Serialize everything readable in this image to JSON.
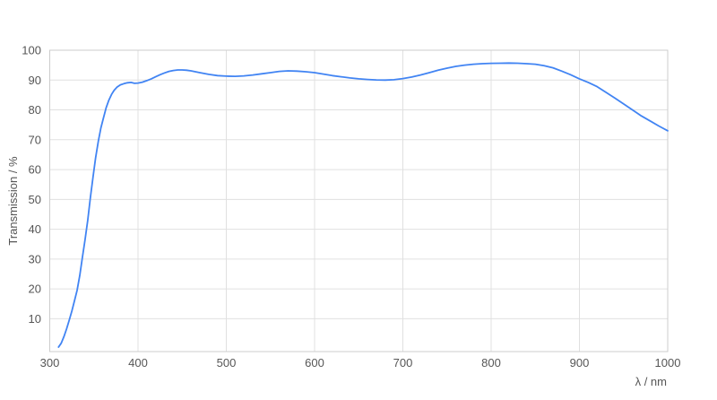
{
  "chart_data": {
    "type": "line",
    "title": "",
    "xlabel": "λ / nm",
    "ylabel": "Transmission / %",
    "xlim": [
      300,
      1000
    ],
    "ylim": [
      -1,
      100
    ],
    "x_ticks": [
      300,
      400,
      500,
      600,
      700,
      800,
      900,
      1000
    ],
    "y_ticks": [
      10,
      20,
      30,
      40,
      50,
      60,
      70,
      80,
      90,
      100
    ],
    "grid": true,
    "legend": false,
    "colors": {
      "line": "#4184f3",
      "grid": "#e0e0e0",
      "frame": "#cccccc",
      "text": "#565656",
      "background": "#ffffff"
    },
    "series": [
      {
        "name": "transmission",
        "points": [
          [
            310,
            0.5
          ],
          [
            313,
            1.8
          ],
          [
            316,
            4
          ],
          [
            319,
            6.5
          ],
          [
            322,
            9.5
          ],
          [
            325,
            12.5
          ],
          [
            328,
            16
          ],
          [
            331,
            19.5
          ],
          [
            334,
            24.5
          ],
          [
            337,
            30.5
          ],
          [
            340,
            36.5
          ],
          [
            343,
            43
          ],
          [
            346,
            50.5
          ],
          [
            349,
            57.5
          ],
          [
            352,
            64
          ],
          [
            355,
            69.5
          ],
          [
            358,
            74
          ],
          [
            361,
            77.5
          ],
          [
            364,
            80.8
          ],
          [
            367,
            83.3
          ],
          [
            370,
            85.2
          ],
          [
            373,
            86.6
          ],
          [
            376,
            87.6
          ],
          [
            380,
            88.4
          ],
          [
            384,
            88.8
          ],
          [
            388,
            89.1
          ],
          [
            392,
            89.2
          ],
          [
            396,
            88.9
          ],
          [
            400,
            89.0
          ],
          [
            405,
            89.3
          ],
          [
            410,
            89.8
          ],
          [
            415,
            90.4
          ],
          [
            420,
            91.1
          ],
          [
            425,
            91.8
          ],
          [
            430,
            92.4
          ],
          [
            435,
            92.9
          ],
          [
            440,
            93.2
          ],
          [
            445,
            93.4
          ],
          [
            450,
            93.4
          ],
          [
            455,
            93.3
          ],
          [
            460,
            93.1
          ],
          [
            470,
            92.5
          ],
          [
            480,
            91.9
          ],
          [
            490,
            91.5
          ],
          [
            500,
            91.3
          ],
          [
            510,
            91.25
          ],
          [
            520,
            91.4
          ],
          [
            530,
            91.7
          ],
          [
            540,
            92.1
          ],
          [
            550,
            92.5
          ],
          [
            560,
            92.9
          ],
          [
            570,
            93.1
          ],
          [
            580,
            93.0
          ],
          [
            590,
            92.8
          ],
          [
            600,
            92.5
          ],
          [
            610,
            92.0
          ],
          [
            620,
            91.5
          ],
          [
            630,
            91.1
          ],
          [
            640,
            90.7
          ],
          [
            650,
            90.4
          ],
          [
            660,
            90.2
          ],
          [
            670,
            90.05
          ],
          [
            680,
            90.0
          ],
          [
            690,
            90.1
          ],
          [
            700,
            90.5
          ],
          [
            710,
            91.0
          ],
          [
            720,
            91.7
          ],
          [
            730,
            92.5
          ],
          [
            740,
            93.3
          ],
          [
            750,
            94.0
          ],
          [
            760,
            94.6
          ],
          [
            770,
            95.0
          ],
          [
            780,
            95.3
          ],
          [
            790,
            95.5
          ],
          [
            800,
            95.6
          ],
          [
            810,
            95.65
          ],
          [
            820,
            95.7
          ],
          [
            830,
            95.65
          ],
          [
            840,
            95.5
          ],
          [
            850,
            95.3
          ],
          [
            860,
            94.8
          ],
          [
            870,
            94.1
          ],
          [
            880,
            93.0
          ],
          [
            890,
            91.8
          ],
          [
            900,
            90.4
          ],
          [
            910,
            89.2
          ],
          [
            920,
            87.8
          ],
          [
            930,
            85.9
          ],
          [
            940,
            84.0
          ],
          [
            950,
            82.0
          ],
          [
            960,
            80.0
          ],
          [
            970,
            78.0
          ],
          [
            980,
            76.3
          ],
          [
            990,
            74.6
          ],
          [
            1000,
            73.0
          ]
        ]
      }
    ]
  }
}
